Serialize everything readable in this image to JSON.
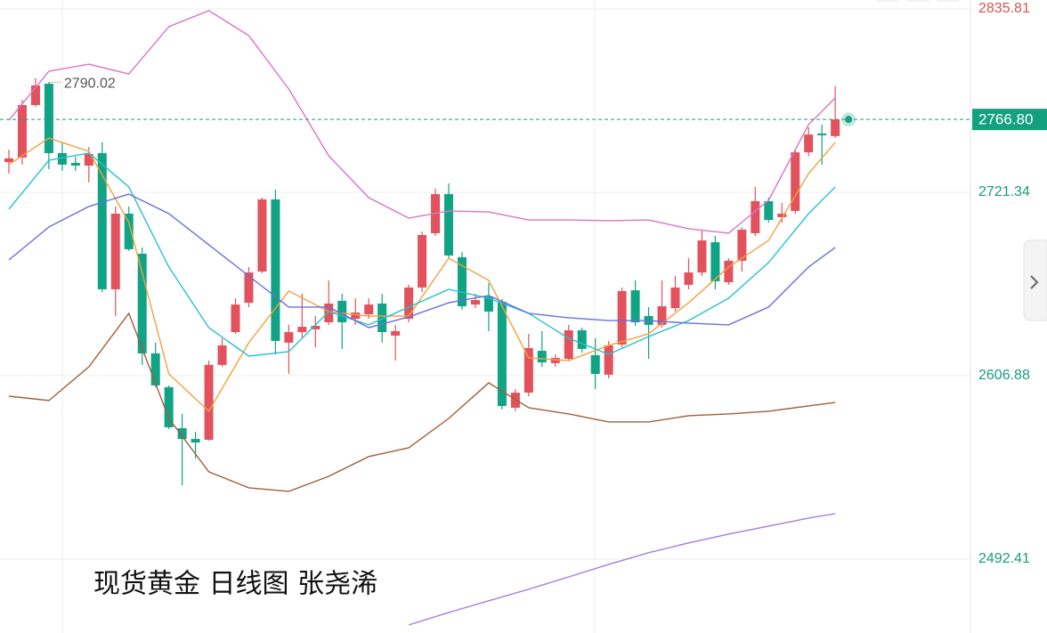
{
  "chart_data": {
    "type": "candlestick",
    "annotation": "现货黄金  日线图 张尧浠",
    "high_marker": {
      "value": 2790.02,
      "label": "2790.02"
    },
    "last_price": {
      "value": 2766.8,
      "label": "2766.80"
    },
    "ylim": [
      2446.3,
      2841.35
    ],
    "yticks": [
      2492.41,
      2606.88,
      2721.34,
      2835.81
    ],
    "grid": true,
    "up_color": "#e2525c",
    "down_color": "#10a384",
    "open": [
      2740.2,
      2743.0,
      2775.8,
      2789.1,
      2745.8,
      2739.7,
      2738.0,
      2745.8,
      2660.8,
      2708.0,
      2683.0,
      2620.8,
      2599.7,
      2574.1,
      2567.4,
      2566.9,
      2613.6,
      2634.1,
      2652.4,
      2671.9,
      2716.9,
      2627.5,
      2634.1,
      2635.8,
      2640.2,
      2653.6,
      2642.4,
      2645.2,
      2651.9,
      2631.9,
      2642.4,
      2661.9,
      2695.8,
      2720.2,
      2680.8,
      2651.3,
      2656.3,
      2653.0,
      2586.9,
      2596.3,
      2622.4,
      2614.7,
      2617.4,
      2635.2,
      2619.7,
      2607.5,
      2626.3,
      2660.2,
      2644.1,
      2638.6,
      2649.1,
      2663.6,
      2671.3,
      2690.2,
      2665.2,
      2678.6,
      2695.8,
      2715.8,
      2705.8,
      2709.7,
      2746.3,
      2758.0,
      2756.4
    ],
    "high": [
      2748.0,
      2779.1,
      2792.5,
      2790.02,
      2752.5,
      2743.6,
      2749.6,
      2752.5,
      2712.5,
      2712.5,
      2686.9,
      2627.5,
      2600.8,
      2583.0,
      2571.9,
      2616.3,
      2630.2,
      2655.2,
      2674.7,
      2718.0,
      2723.0,
      2638.6,
      2658.0,
      2644.1,
      2666.4,
      2658.0,
      2655.2,
      2655.2,
      2658.0,
      2638.6,
      2663.6,
      2696.9,
      2723.6,
      2726.9,
      2684.1,
      2658.0,
      2664.7,
      2654.7,
      2598.6,
      2633.0,
      2634.7,
      2620.2,
      2638.6,
      2636.9,
      2630.2,
      2628.6,
      2661.9,
      2666.4,
      2649.7,
      2666.4,
      2669.1,
      2680.2,
      2698.0,
      2694.1,
      2680.2,
      2699.7,
      2724.7,
      2718.0,
      2714.7,
      2748.0,
      2761.9,
      2763.6,
      2787.5
    ],
    "low": [
      2733.0,
      2738.6,
      2774.7,
      2735.8,
      2734.7,
      2734.7,
      2727.5,
      2659.1,
      2644.1,
      2684.7,
      2613.6,
      2599.7,
      2573.6,
      2538.5,
      2555.2,
      2566.3,
      2612.4,
      2633.0,
      2649.7,
      2670.8,
      2620.2,
      2608.0,
      2630.2,
      2624.6,
      2638.6,
      2623.6,
      2638.6,
      2642.4,
      2627.5,
      2616.3,
      2640.2,
      2659.1,
      2694.1,
      2680.2,
      2648.0,
      2649.1,
      2634.7,
      2585.8,
      2584.7,
      2594.1,
      2612.4,
      2612.4,
      2616.3,
      2621.3,
      2598.6,
      2605.2,
      2624.6,
      2638.0,
      2617.4,
      2636.9,
      2646.9,
      2660.8,
      2669.1,
      2660.8,
      2663.6,
      2671.9,
      2694.1,
      2702.4,
      2702.4,
      2708.0,
      2743.9,
      2738.6,
      2755.2
    ],
    "close": [
      2742.5,
      2775.8,
      2788.0,
      2745.8,
      2738.6,
      2738.0,
      2745.2,
      2660.8,
      2708.0,
      2685.8,
      2620.8,
      2600.8,
      2574.7,
      2567.4,
      2565.2,
      2613.6,
      2625.8,
      2651.3,
      2671.3,
      2716.9,
      2628.6,
      2634.1,
      2637.4,
      2638.0,
      2651.9,
      2640.2,
      2646.3,
      2651.3,
      2634.1,
      2634.7,
      2661.9,
      2694.7,
      2720.2,
      2681.9,
      2650.2,
      2654.1,
      2646.9,
      2588.0,
      2596.3,
      2624.1,
      2615.2,
      2618.0,
      2635.2,
      2623.6,
      2608.0,
      2625.8,
      2659.7,
      2640.2,
      2638.6,
      2650.2,
      2661.9,
      2671.3,
      2691.3,
      2665.8,
      2678.6,
      2698.0,
      2715.8,
      2704.1,
      2708.0,
      2746.3,
      2757.4,
      2756.9,
      2766.8
    ],
    "lines": [
      {
        "color": "#d875c8",
        "x": [
          0,
          3,
          6,
          9,
          12,
          15,
          18,
          21,
          24,
          27,
          30,
          33,
          36,
          39,
          42,
          45,
          48,
          51,
          54,
          57,
          60,
          62
        ],
        "values": [
          2766.3,
          2796.9,
          2801.3,
          2795.2,
          2824.7,
          2834.7,
          2819.1,
          2785.8,
          2744.1,
          2718.0,
          2705.2,
          2709.7,
          2709.1,
          2704.1,
          2704.1,
          2703.6,
          2704.1,
          2698.6,
          2695.8,
          2716.4,
          2763.6,
          2780.2
        ]
      },
      {
        "color": "#a0603a",
        "x": [
          0,
          3,
          6,
          9,
          12,
          15,
          18,
          21,
          24,
          27,
          30,
          33,
          36,
          39,
          42,
          45,
          48,
          51,
          54,
          57,
          60,
          62
        ],
        "values": [
          2594.1,
          2591.4,
          2612.4,
          2645.8,
          2580.2,
          2546.9,
          2536.9,
          2534.7,
          2544.1,
          2556.4,
          2561.9,
          2580.2,
          2602.4,
          2586.9,
          2583.0,
          2578.0,
          2578.0,
          2581.9,
          2583.0,
          2584.7,
          2588.0,
          2590.2
        ]
      },
      {
        "color": "#f5a040",
        "x": [
          0,
          3,
          6,
          9,
          12,
          15,
          18,
          21,
          24,
          27,
          30,
          33,
          36,
          39,
          42,
          45,
          48,
          51,
          54,
          57,
          60,
          62
        ],
        "values": [
          2738.6,
          2755.2,
          2746.9,
          2702.5,
          2608.0,
          2584.7,
          2627.5,
          2659.7,
          2646.9,
          2644.1,
          2644.1,
          2680.2,
          2666.4,
          2618.0,
          2616.3,
          2625.8,
          2633.0,
          2652.4,
          2674.7,
          2691.3,
          2733.0,
          2752.5
        ]
      },
      {
        "color": "#25c2d0",
        "x": [
          0,
          3,
          6,
          9,
          12,
          15,
          18,
          21,
          24,
          27,
          30,
          33,
          36,
          39,
          42,
          45,
          48,
          51,
          54,
          57,
          60,
          62
        ],
        "values": [
          2710.8,
          2741.3,
          2745.8,
          2724.7,
          2674.7,
          2636.9,
          2619.1,
          2621.9,
          2646.9,
          2638.6,
          2649.7,
          2660.8,
          2655.2,
          2645.8,
          2630.2,
          2620.2,
          2631.3,
          2641.3,
          2655.2,
          2677.5,
          2708.0,
          2724.7
        ]
      },
      {
        "color": "#6a6ee0",
        "x": [
          0,
          3,
          6,
          9,
          12,
          15,
          18,
          21,
          24,
          27,
          30,
          33,
          36,
          39,
          42,
          45,
          48,
          51,
          54,
          57,
          60,
          62
        ],
        "values": [
          2679.1,
          2699.7,
          2712.5,
          2720.2,
          2708.0,
          2688.6,
          2669.1,
          2649.7,
          2649.7,
          2636.9,
          2643.6,
          2652.4,
          2656.9,
          2645.8,
          2643.0,
          2641.3,
          2641.3,
          2639.7,
          2638.6,
          2649.7,
          2674.7,
          2686.9
        ]
      },
      {
        "color": "#a47de0",
        "x": [
          30,
          33,
          36,
          39,
          42,
          45,
          48,
          51,
          54,
          57,
          60,
          62
        ],
        "values": [
          2451.3,
          2459.1,
          2466.4,
          2473.6,
          2481.3,
          2489.1,
          2496.4,
          2502.5,
          2508.0,
          2513.0,
          2518.0,
          2520.8
        ]
      }
    ]
  }
}
